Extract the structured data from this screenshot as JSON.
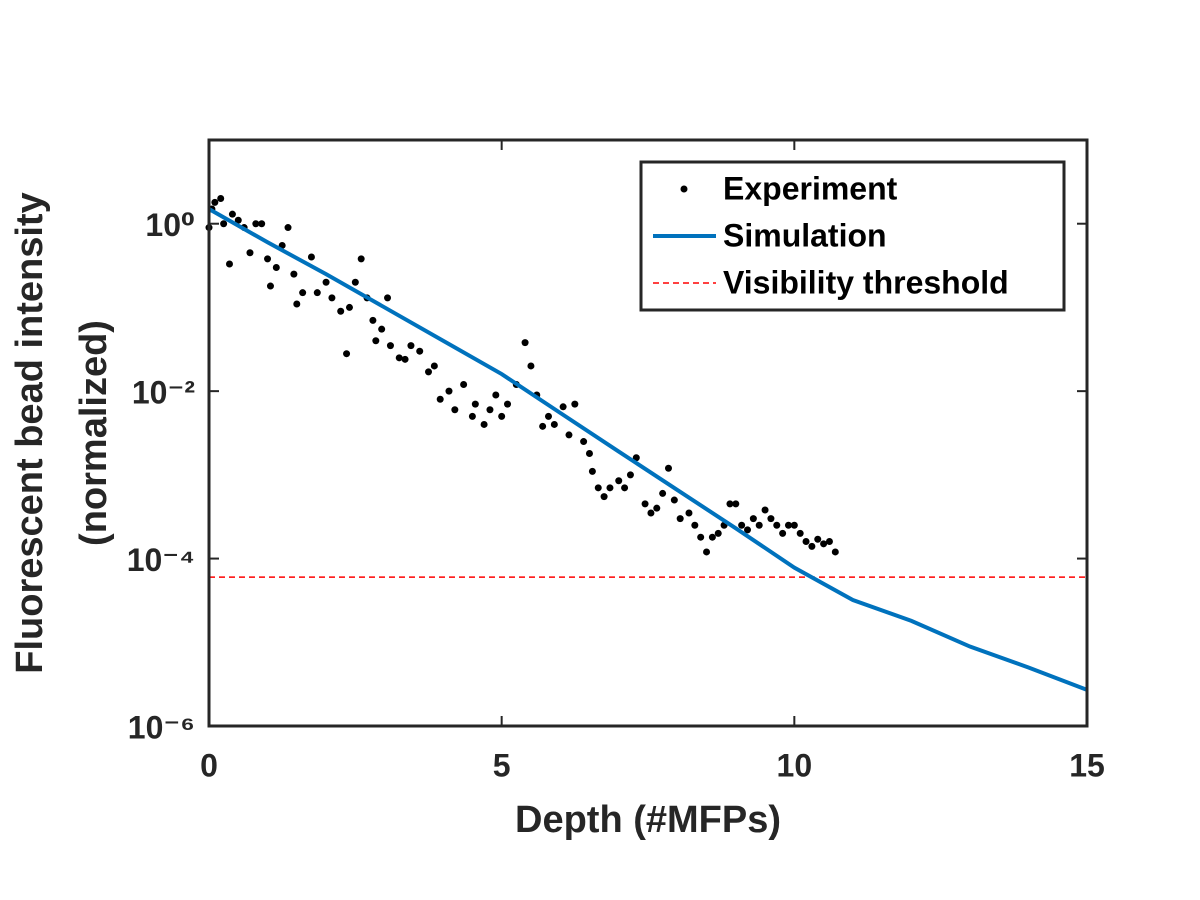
{
  "chart_data": {
    "type": "scatter",
    "xlabel": "Depth (#MFPs)",
    "ylabel": [
      "Fluorescent bead intensity",
      "(normalized)"
    ],
    "xlim": [
      0,
      15
    ],
    "xticks": [
      0,
      5,
      10,
      15
    ],
    "ylim": [
      1e-06,
      10
    ],
    "yscale": "log",
    "yticks": [
      {
        "value": 1e-06,
        "label": "10⁻⁶"
      },
      {
        "value": 0.0001,
        "label": "10⁻⁴"
      },
      {
        "value": 0.01,
        "label": "10⁻²"
      },
      {
        "value": 1,
        "label": "10⁰"
      }
    ],
    "legend": "upper right",
    "series": [
      {
        "name": "Experiment",
        "type": "scatter",
        "color": "#000000",
        "x": [
          0.0,
          0.05,
          0.1,
          0.2,
          0.25,
          0.35,
          0.4,
          0.5,
          0.6,
          0.7,
          0.8,
          0.9,
          1.0,
          1.05,
          1.15,
          1.25,
          1.35,
          1.45,
          1.5,
          1.6,
          1.75,
          1.85,
          2.0,
          2.1,
          2.25,
          2.35,
          2.4,
          2.5,
          2.6,
          2.7,
          2.8,
          2.85,
          2.95,
          3.05,
          3.1,
          3.25,
          3.35,
          3.45,
          3.6,
          3.75,
          3.85,
          3.95,
          4.1,
          4.2,
          4.35,
          4.5,
          4.55,
          4.7,
          4.8,
          4.9,
          5.0,
          5.1,
          5.25,
          5.4,
          5.5,
          5.6,
          5.7,
          5.8,
          5.9,
          6.05,
          6.15,
          6.25,
          6.4,
          6.5,
          6.55,
          6.65,
          6.75,
          6.85,
          7.0,
          7.1,
          7.2,
          7.3,
          7.45,
          7.55,
          7.65,
          7.75,
          7.85,
          7.95,
          8.05,
          8.2,
          8.3,
          8.4,
          8.5,
          8.6,
          8.7,
          8.8,
          8.9,
          9.0,
          9.1,
          9.2,
          9.3,
          9.4,
          9.5,
          9.6,
          9.7,
          9.8,
          9.9,
          10.0,
          10.1,
          10.2,
          10.3,
          10.4,
          10.5,
          10.6,
          10.7
        ],
        "values": [
          0.9,
          1.5,
          1.8,
          2.0,
          1.0,
          0.33,
          1.3,
          1.1,
          0.9,
          0.45,
          1.0,
          1.0,
          0.38,
          0.18,
          0.3,
          0.55,
          0.9,
          0.25,
          0.11,
          0.15,
          0.4,
          0.15,
          0.2,
          0.13,
          0.09,
          0.028,
          0.1,
          0.2,
          0.38,
          0.13,
          0.07,
          0.04,
          0.055,
          0.13,
          0.035,
          0.025,
          0.024,
          0.035,
          0.03,
          0.017,
          0.02,
          0.008,
          0.01,
          0.006,
          0.012,
          0.005,
          0.007,
          0.004,
          0.006,
          0.009,
          0.005,
          0.007,
          0.012,
          0.038,
          0.02,
          0.009,
          0.0038,
          0.005,
          0.004,
          0.0065,
          0.003,
          0.007,
          0.0025,
          0.0018,
          0.0011,
          0.0007,
          0.00055,
          0.0007,
          0.00085,
          0.0007,
          0.001,
          0.0016,
          0.00045,
          0.00035,
          0.0004,
          0.0006,
          0.0012,
          0.0005,
          0.0003,
          0.00035,
          0.00025,
          0.00018,
          0.00012,
          0.00018,
          0.0002,
          0.00025,
          0.00045,
          0.00045,
          0.00025,
          0.00022,
          0.0003,
          0.00025,
          0.00038,
          0.0003,
          0.00025,
          0.0002,
          0.00025,
          0.00025,
          0.0002,
          0.00016,
          0.00014,
          0.00017,
          0.00015,
          0.00016,
          0.00012
        ]
      },
      {
        "name": "Simulation",
        "type": "line",
        "color": "#0072bd",
        "x": [
          0,
          1,
          2,
          3,
          4,
          5,
          6,
          7,
          8,
          9,
          10,
          11,
          12,
          13,
          14,
          15
        ],
        "values": [
          1.5,
          0.6,
          0.25,
          0.1,
          0.04,
          0.016,
          0.0055,
          0.0019,
          0.00066,
          0.00023,
          7.8e-05,
          3.2e-05,
          1.8e-05,
          8.9e-06,
          5e-06,
          2.7e-06
        ]
      },
      {
        "name": "Visibility threshold",
        "type": "hline",
        "color": "#ff0000",
        "value": 6e-05
      }
    ]
  }
}
